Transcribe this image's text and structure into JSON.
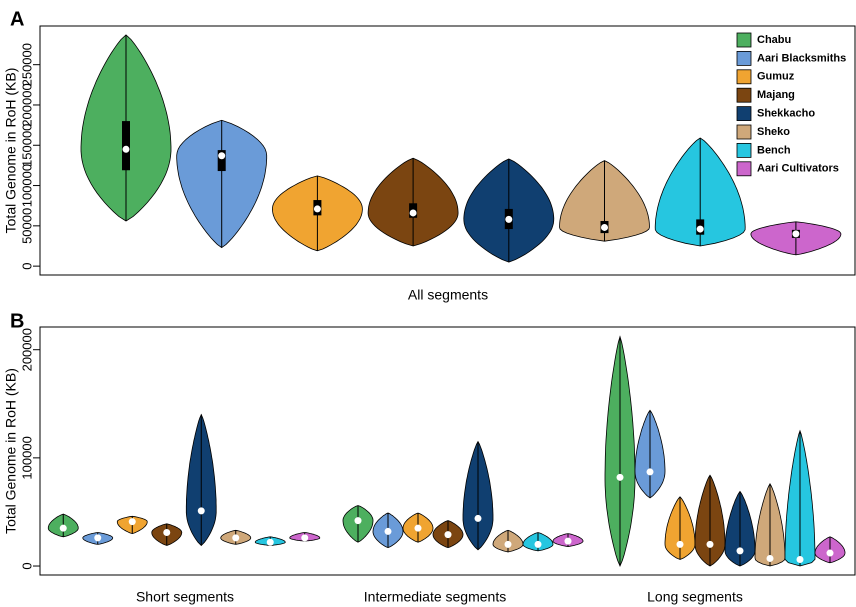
{
  "chart_data": [
    {
      "type": "violin",
      "panel_label": "A",
      "ylabel": "Total Genome in RoH (KB)",
      "xlabel": "All segments",
      "ylim": [
        -11000,
        298000
      ],
      "yticks": [
        0,
        50000,
        100000,
        150000,
        200000,
        250000
      ],
      "series": [
        {
          "name": "Chabu",
          "color": "#4daf5f",
          "min": 56000,
          "q1": 119000,
          "median": 145000,
          "q3": 180000,
          "max": 287000
        },
        {
          "name": "Aari Blacksmiths",
          "color": "#6a9bd8",
          "min": 23000,
          "q1": 118000,
          "median": 137000,
          "q3": 144000,
          "max": 181000
        },
        {
          "name": "Gumuz",
          "color": "#f0a431",
          "min": 19000,
          "q1": 63000,
          "median": 71000,
          "q3": 82000,
          "max": 112000
        },
        {
          "name": "Majang",
          "color": "#7b4511",
          "min": 25000,
          "q1": 60000,
          "median": 66000,
          "q3": 78000,
          "max": 134000
        },
        {
          "name": "Shekkacho",
          "color": "#103f70",
          "min": 5000,
          "q1": 46000,
          "median": 58000,
          "q3": 71000,
          "max": 133000
        },
        {
          "name": "Sheko",
          "color": "#cfa87a",
          "min": 31000,
          "q1": 41000,
          "median": 48000,
          "q3": 56000,
          "max": 131000
        },
        {
          "name": "Bench",
          "color": "#26c6e0",
          "min": 25000,
          "q1": 39000,
          "median": 46000,
          "q3": 58000,
          "max": 159000
        },
        {
          "name": "Aari Cultivators",
          "color": "#cc66cc",
          "min": 14000,
          "q1": 35000,
          "median": 40000,
          "q3": 45000,
          "max": 55000
        }
      ]
    },
    {
      "type": "violin",
      "panel_label": "B",
      "ylabel": "Total Genome in RoH (KB)",
      "categories": [
        "Short segments",
        "Intermediate segments",
        "Long segments"
      ],
      "ylim": [
        -8300,
        221000
      ],
      "yticks": [
        0,
        100000,
        200000
      ],
      "series": [
        {
          "color": "#4daf5f",
          "min": [
            27000,
            22000,
            0
          ],
          "median": [
            35000,
            42000,
            82000
          ],
          "max": [
            48000,
            56000,
            212000
          ]
        },
        {
          "color": "#6a9bd8",
          "min": [
            20000,
            17000,
            63000
          ],
          "median": [
            26000,
            32000,
            87000
          ],
          "max": [
            31000,
            49000,
            144000
          ]
        },
        {
          "color": "#f0a431",
          "min": [
            30000,
            22000,
            6000
          ],
          "median": [
            41000,
            35000,
            20000
          ],
          "max": [
            46000,
            49000,
            64000
          ]
        },
        {
          "color": "#7b4511",
          "min": [
            19000,
            17000,
            0
          ],
          "median": [
            31000,
            29000,
            20000
          ],
          "max": [
            39000,
            42000,
            84000
          ]
        },
        {
          "color": "#103f70",
          "min": [
            19000,
            15000,
            0
          ],
          "median": [
            51000,
            44000,
            14000
          ],
          "max": [
            140000,
            115000,
            69000
          ]
        },
        {
          "color": "#cfa87a",
          "min": [
            20000,
            13000,
            0
          ],
          "median": [
            26000,
            20000,
            7000
          ],
          "max": [
            33000,
            33000,
            76000
          ]
        },
        {
          "color": "#26c6e0",
          "min": [
            19000,
            14000,
            0
          ],
          "median": [
            22000,
            20000,
            6000
          ],
          "max": [
            27000,
            31000,
            125000
          ]
        },
        {
          "color": "#cc66cc",
          "min": [
            23000,
            18000,
            3000
          ],
          "median": [
            26000,
            23000,
            12000
          ],
          "max": [
            31000,
            30000,
            27000
          ]
        }
      ]
    }
  ]
}
